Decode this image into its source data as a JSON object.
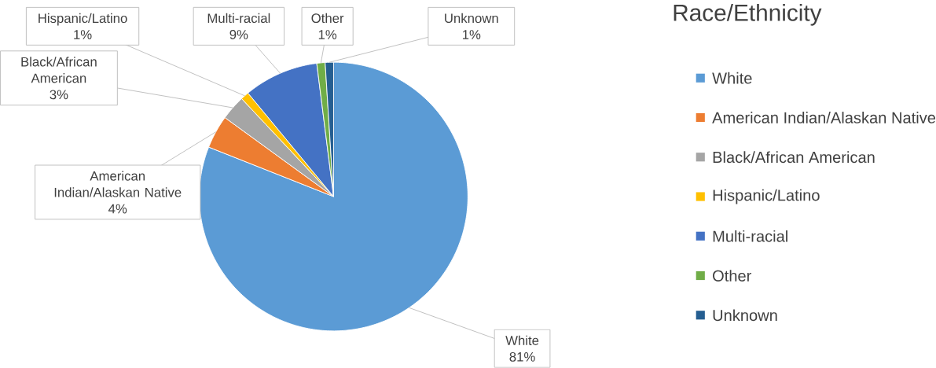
{
  "chart_data": {
    "type": "pie",
    "categories": [
      "White",
      "American Indian/Alaskan Native",
      "Black/African American",
      "Hispanic/Latino",
      "Multi-racial",
      "Other",
      "Unknown"
    ],
    "values": [
      81,
      4,
      3,
      1,
      9,
      1,
      1
    ],
    "colors": [
      "#5b9bd5",
      "#ed7d31",
      "#a5a5a5",
      "#ffc000",
      "#4472c4",
      "#70ad47",
      "#255e91"
    ],
    "value_labels": [
      "81%",
      "4%",
      "3%",
      "1%",
      "9%",
      "1%",
      "1%"
    ],
    "legend_title": "Race/Ethnicity",
    "legend": "right"
  }
}
